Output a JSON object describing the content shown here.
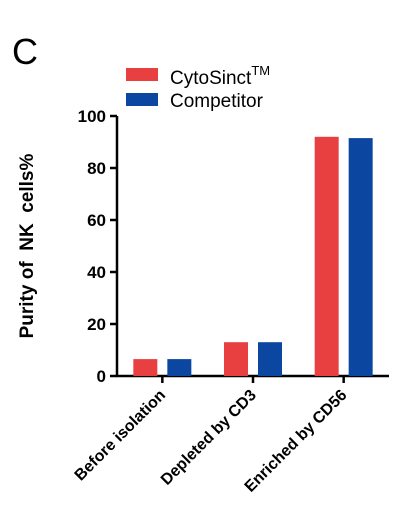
{
  "panel_label": "C",
  "legend": {
    "series1_text": "CytoSinct",
    "series1_superscript": "TM",
    "series2_text": "Competitor"
  },
  "chart_data": {
    "type": "bar",
    "categories": [
      "Before isolation",
      "Depleted by CD3",
      "Enriched by CD56"
    ],
    "series": [
      {
        "name": "CytoSinctTM",
        "color": "#e84040",
        "values": [
          6.5,
          13,
          92
        ]
      },
      {
        "name": "Competitor",
        "color": "#0b47a1",
        "values": [
          6.5,
          13,
          91.5
        ]
      }
    ],
    "title": "",
    "xlabel": "",
    "ylabel": "Purity of  NK  cells%",
    "ylim": [
      0,
      100
    ],
    "yticks": [
      0,
      20,
      40,
      60,
      80,
      100
    ],
    "grid": false,
    "legend_position": "top"
  }
}
